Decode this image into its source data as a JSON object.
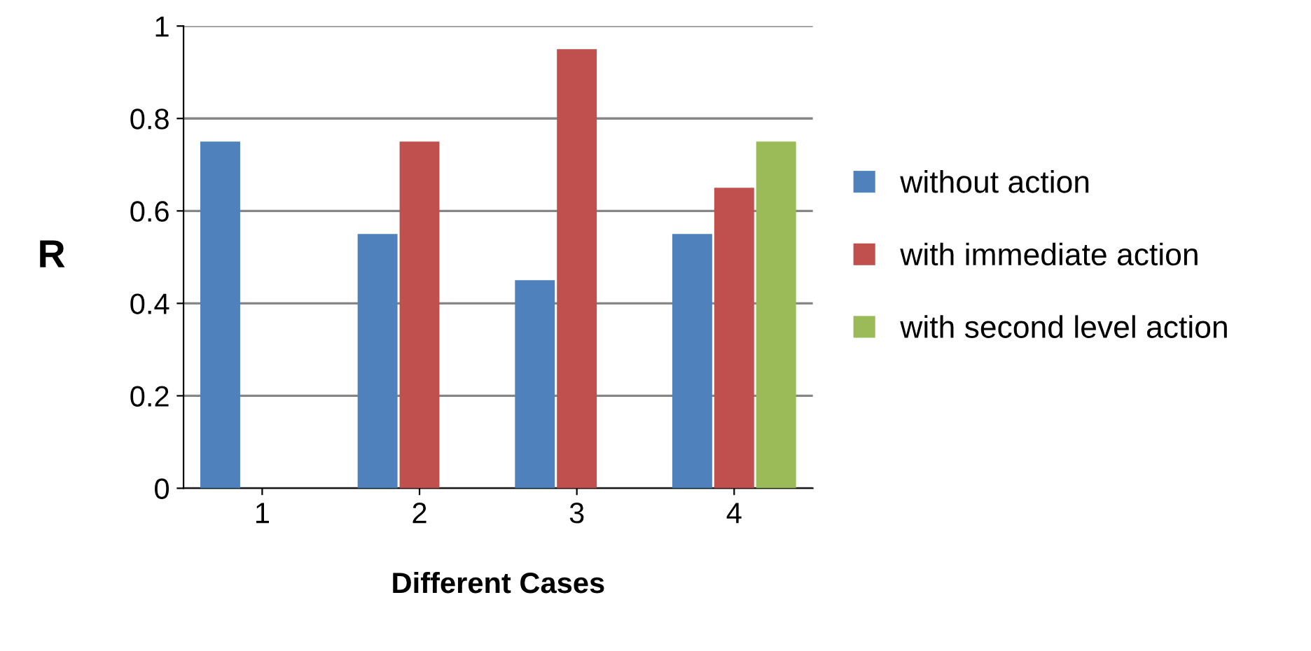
{
  "chart_data": {
    "type": "bar",
    "xlabel": "Different Cases",
    "ylabel": "R",
    "categories": [
      "1",
      "2",
      "3",
      "4"
    ],
    "series": [
      {
        "name": "without action",
        "color": "#4f81bd",
        "values": [
          0.75,
          0.55,
          0.45,
          0.55
        ]
      },
      {
        "name": "with immediate action",
        "color": "#c0504d",
        "values": [
          null,
          0.75,
          0.95,
          0.65
        ]
      },
      {
        "name": "with second level action",
        "color": "#9bbb59",
        "values": [
          null,
          null,
          null,
          0.75
        ]
      }
    ],
    "ylim": [
      0,
      1
    ],
    "yticks": [
      0,
      0.2,
      0.4,
      0.6,
      0.8,
      1
    ],
    "grid": "y",
    "legend": "right"
  }
}
